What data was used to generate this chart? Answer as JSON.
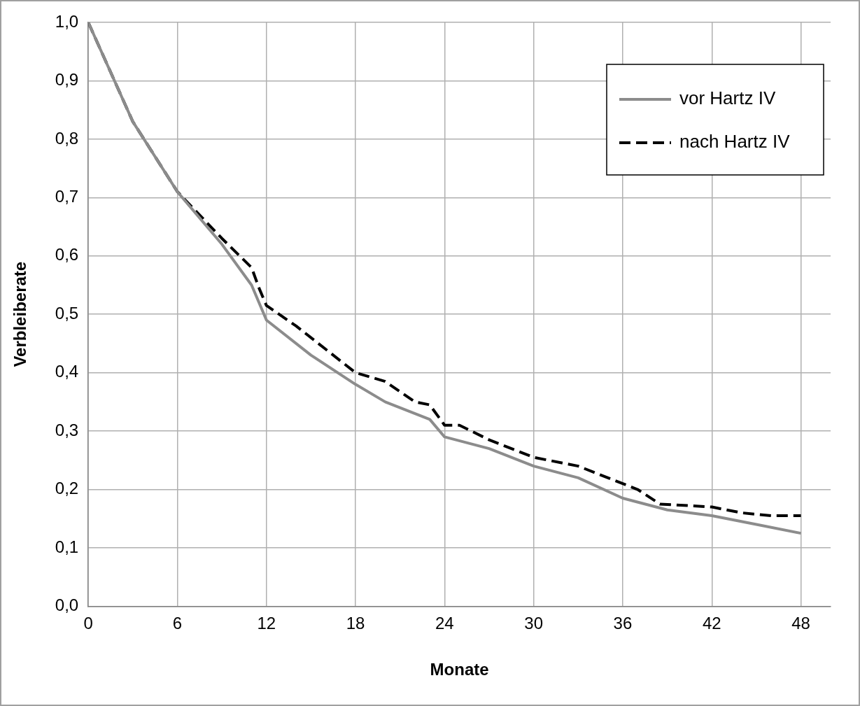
{
  "chart_data": {
    "type": "line",
    "xlabel": "Monate",
    "ylabel": "Verbleiberate",
    "xlim": [
      0,
      50
    ],
    "xticks": [
      0,
      6,
      12,
      18,
      24,
      30,
      36,
      42,
      48
    ],
    "ylim": [
      0,
      1
    ],
    "yticks": [
      {
        "value": 0,
        "label": "0,0"
      },
      {
        "value": 0.1,
        "label": "0,1"
      },
      {
        "value": 0.2,
        "label": "0,2"
      },
      {
        "value": 0.3,
        "label": "0,3"
      },
      {
        "value": 0.4,
        "label": "0,4"
      },
      {
        "value": 0.5,
        "label": "0,5"
      },
      {
        "value": 0.6,
        "label": "0,6"
      },
      {
        "value": 0.7,
        "label": "0,7"
      },
      {
        "value": 0.8,
        "label": "0,8"
      },
      {
        "value": 0.9,
        "label": "0,9"
      },
      {
        "value": 1,
        "label": "1,0"
      }
    ],
    "grid": true,
    "legend": "top right",
    "marker": "none",
    "series": [
      {
        "name": "vor Hartz IV",
        "color": "#8c8c8c",
        "line_style": "solid",
        "x": [
          0,
          3,
          6,
          9,
          11,
          12,
          15,
          18,
          20,
          23,
          24,
          27,
          30,
          33,
          36,
          39,
          42,
          45,
          48
        ],
        "values": [
          1.0,
          0.83,
          0.71,
          0.62,
          0.55,
          0.49,
          0.43,
          0.38,
          0.35,
          0.32,
          0.29,
          0.27,
          0.24,
          0.22,
          0.185,
          0.165,
          0.155,
          0.14,
          0.125
        ]
      },
      {
        "name": "nach Hartz IV",
        "color": "#000000",
        "line_style": "dashed",
        "x": [
          0,
          3,
          6,
          9,
          11,
          11.5,
          12,
          14,
          16,
          18,
          20,
          22,
          23,
          24,
          25,
          27,
          30,
          33,
          35,
          37,
          38.5,
          42,
          44,
          46,
          48
        ],
        "values": [
          1.0,
          0.83,
          0.71,
          0.63,
          0.58,
          0.545,
          0.515,
          0.48,
          0.44,
          0.4,
          0.385,
          0.35,
          0.345,
          0.31,
          0.31,
          0.285,
          0.255,
          0.24,
          0.22,
          0.2,
          0.175,
          0.17,
          0.16,
          0.155,
          0.155
        ]
      }
    ]
  }
}
